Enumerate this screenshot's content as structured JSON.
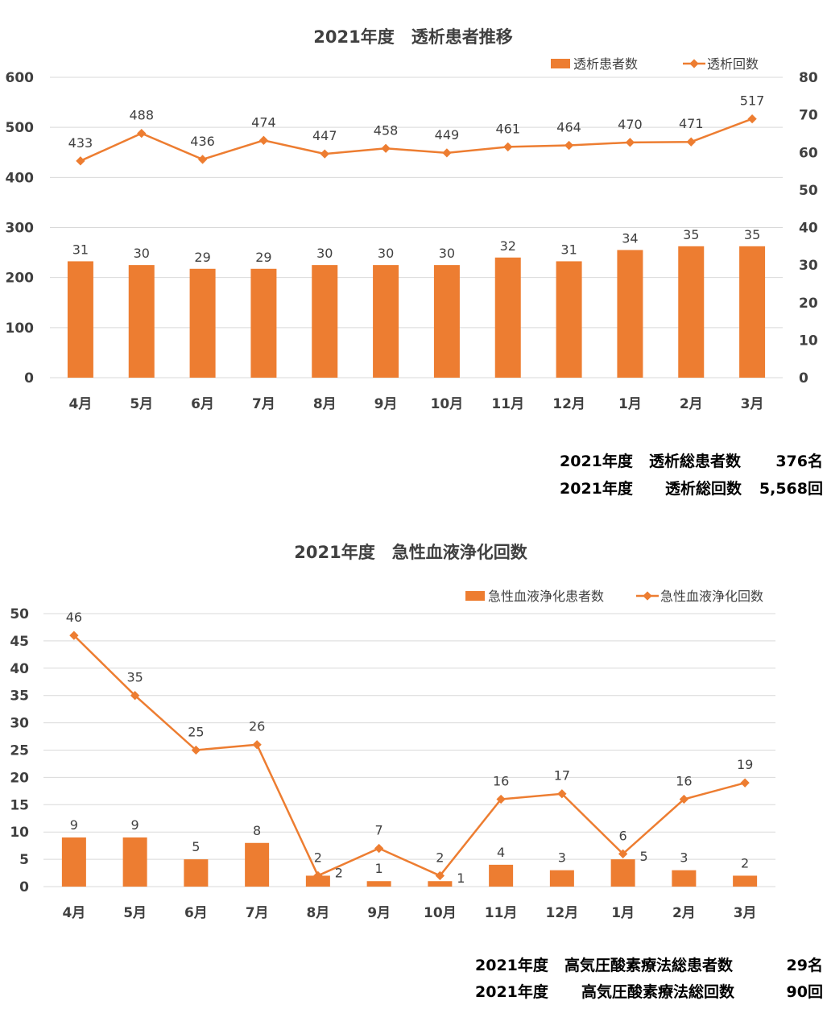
{
  "colors": {
    "bar": "#ED7D31",
    "line": "#ED7D31",
    "grid": "#D9D9D9",
    "axis_text": "#404040"
  },
  "charts": [
    {
      "title": "2021年度　透析患者推移",
      "legend": {
        "bar": "透析患者数",
        "line": "透析回数"
      }
    },
    {
      "title": "2021年度　急性血液浄化回数",
      "legend": {
        "bar": "急性血液浄化患者数",
        "line": "急性血液浄化回数"
      }
    }
  ],
  "chart_data": [
    {
      "type": "bar+line",
      "title": "2021年度　透析患者推移",
      "categories": [
        "4月",
        "5月",
        "6月",
        "7月",
        "8月",
        "9月",
        "10月",
        "11月",
        "12月",
        "1月",
        "2月",
        "3月"
      ],
      "series": [
        {
          "name": "透析患者数",
          "type": "bar",
          "axis": "right",
          "values": [
            31,
            30,
            29,
            29,
            30,
            30,
            30,
            32,
            31,
            34,
            35,
            35
          ]
        },
        {
          "name": "透析回数",
          "type": "line",
          "axis": "left",
          "values": [
            433,
            488,
            436,
            474,
            447,
            458,
            449,
            461,
            464,
            470,
            471,
            517
          ]
        }
      ],
      "y_left": {
        "min": 0,
        "max": 600,
        "ticks": [
          0,
          100,
          200,
          300,
          400,
          500,
          600
        ]
      },
      "y_right": {
        "min": 0,
        "max": 80,
        "ticks": [
          0,
          10,
          20,
          30,
          40,
          50,
          60,
          70,
          80
        ]
      },
      "grid": true,
      "legend_position": "top-right"
    },
    {
      "type": "bar+line",
      "title": "2021年度　急性血液浄化回数",
      "categories": [
        "4月",
        "5月",
        "6月",
        "7月",
        "8月",
        "9月",
        "10月",
        "11月",
        "12月",
        "1月",
        "2月",
        "3月"
      ],
      "series": [
        {
          "name": "急性血液浄化患者数",
          "type": "bar",
          "axis": "left",
          "values": [
            9,
            9,
            5,
            8,
            2,
            1,
            1,
            4,
            3,
            5,
            3,
            2
          ]
        },
        {
          "name": "急性血液浄化回数",
          "type": "line",
          "axis": "left",
          "values": [
            46,
            35,
            25,
            26,
            2,
            7,
            2,
            16,
            17,
            6,
            16,
            19
          ]
        }
      ],
      "y_left": {
        "min": 0,
        "max": 50,
        "ticks": [
          0,
          5,
          10,
          15,
          20,
          25,
          30,
          35,
          40,
          45,
          50
        ]
      },
      "grid": true,
      "legend_position": "top-right"
    }
  ],
  "summaries": {
    "dialysis": {
      "patients": {
        "label1": "2021年度",
        "label2": "透析総患者数",
        "value": "376名"
      },
      "sessions": {
        "label1": "2021年度",
        "label2": "透析総回数",
        "value": "5,568回"
      }
    },
    "hbo": {
      "patients": {
        "label1": "2021年度",
        "label2": "高気圧酸素療法総患者数",
        "value": "29名"
      },
      "sessions": {
        "label1": "2021年度",
        "label2": "高気圧酸素療法総回数",
        "value": "90回"
      }
    }
  }
}
